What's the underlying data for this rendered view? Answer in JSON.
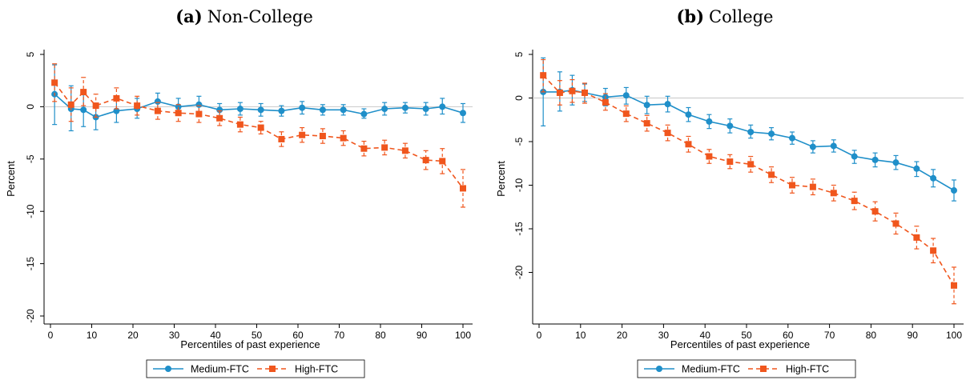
{
  "chart_data": [
    {
      "type": "line",
      "title_prefix": "(a)",
      "title": "Non-College",
      "xlabel": "Percentiles of past experience",
      "ylabel": "Percent",
      "xlim": [
        0,
        100
      ],
      "ylim": [
        -20,
        5
      ],
      "xticks": [
        0,
        10,
        20,
        30,
        40,
        50,
        60,
        70,
        80,
        90,
        100
      ],
      "yticks": [
        5,
        0,
        -5,
        -10,
        -15,
        -20
      ],
      "reference_line": 0,
      "grid": false,
      "legend_position": "bottom",
      "x": [
        1,
        5,
        8,
        11,
        16,
        21,
        26,
        31,
        36,
        41,
        46,
        51,
        56,
        61,
        66,
        71,
        76,
        81,
        86,
        91,
        95,
        100
      ],
      "series": [
        {
          "name": "Medium-FTC",
          "color": "#1f8fc9",
          "marker": "circle",
          "line": "solid",
          "values": [
            1.2,
            -0.2,
            -0.3,
            -1.0,
            -0.4,
            -0.2,
            0.5,
            0.0,
            0.2,
            -0.3,
            -0.2,
            -0.3,
            -0.4,
            -0.1,
            -0.3,
            -0.3,
            -0.7,
            -0.2,
            -0.1,
            -0.2,
            0.0,
            -0.6
          ],
          "ci_low": [
            -1.7,
            -2.3,
            -1.9,
            -2.2,
            -1.5,
            -1.1,
            -0.3,
            -0.8,
            -0.6,
            -0.9,
            -0.8,
            -0.9,
            -0.9,
            -0.7,
            -0.8,
            -0.8,
            -1.1,
            -0.8,
            -0.6,
            -0.8,
            -0.7,
            -1.5
          ],
          "ci_high": [
            4.0,
            2.0,
            1.3,
            0.3,
            0.7,
            0.8,
            1.3,
            0.8,
            1.0,
            0.3,
            0.4,
            0.3,
            0.1,
            0.5,
            0.2,
            0.2,
            -0.2,
            0.4,
            0.4,
            0.4,
            0.8,
            0.3
          ]
        },
        {
          "name": "High-FTC",
          "color": "#f0561d",
          "marker": "square",
          "line": "dashed",
          "values": [
            2.3,
            0.2,
            1.4,
            0.1,
            0.8,
            0.1,
            -0.4,
            -0.6,
            -0.7,
            -1.1,
            -1.7,
            -2.0,
            -3.1,
            -2.7,
            -2.8,
            -3.0,
            -4.0,
            -3.9,
            -4.2,
            -5.1,
            -5.2,
            -7.8
          ],
          "ci_low": [
            0.5,
            -1.4,
            0.1,
            -1.0,
            -0.2,
            -0.8,
            -1.2,
            -1.4,
            -1.5,
            -1.8,
            -2.4,
            -2.6,
            -3.8,
            -3.4,
            -3.5,
            -3.7,
            -4.7,
            -4.6,
            -4.9,
            -6.0,
            -6.4,
            -9.6
          ],
          "ci_high": [
            4.1,
            1.8,
            2.8,
            1.2,
            1.8,
            1.0,
            0.4,
            0.2,
            0.1,
            -0.4,
            -1.0,
            -1.4,
            -2.4,
            -2.0,
            -2.1,
            -2.3,
            -3.3,
            -3.2,
            -3.5,
            -4.2,
            -4.0,
            -6.0
          ]
        }
      ]
    },
    {
      "type": "line",
      "title_prefix": "(b)",
      "title": "College",
      "xlabel": "Percentiles of past experience",
      "ylabel": "Percent",
      "xlim": [
        0,
        100
      ],
      "ylim": [
        -25,
        5
      ],
      "xticks": [
        0,
        10,
        20,
        30,
        40,
        50,
        60,
        70,
        80,
        90,
        100
      ],
      "yticks": [
        5,
        0,
        -5,
        -10,
        -15,
        -20
      ],
      "reference_line": 0,
      "grid": false,
      "legend_position": "bottom",
      "x": [
        1,
        5,
        8,
        11,
        16,
        21,
        26,
        31,
        36,
        41,
        46,
        51,
        56,
        61,
        66,
        71,
        76,
        81,
        86,
        91,
        95,
        100
      ],
      "series": [
        {
          "name": "Medium-FTC",
          "color": "#1f8fc9",
          "marker": "circle",
          "line": "solid",
          "values": [
            0.7,
            0.7,
            0.9,
            0.6,
            0.1,
            0.3,
            -0.8,
            -0.7,
            -1.9,
            -2.7,
            -3.2,
            -3.9,
            -4.1,
            -4.6,
            -5.6,
            -5.5,
            -6.7,
            -7.1,
            -7.4,
            -8.1,
            -9.2,
            -10.6
          ],
          "ci_low": [
            -3.2,
            -1.5,
            -0.8,
            -0.4,
            -0.9,
            -0.7,
            -1.8,
            -1.6,
            -2.7,
            -3.5,
            -4.0,
            -4.6,
            -4.8,
            -5.3,
            -6.3,
            -6.2,
            -7.5,
            -7.9,
            -8.2,
            -9.0,
            -10.2,
            -11.8
          ],
          "ci_high": [
            4.6,
            3.0,
            2.6,
            1.6,
            1.1,
            1.2,
            0.2,
            0.2,
            -1.1,
            -1.9,
            -2.4,
            -3.1,
            -3.4,
            -3.9,
            -4.9,
            -4.8,
            -6.0,
            -6.3,
            -6.6,
            -7.3,
            -8.2,
            -9.4
          ]
        },
        {
          "name": "High-FTC",
          "color": "#f0561d",
          "marker": "square",
          "line": "dashed",
          "values": [
            2.6,
            0.6,
            0.8,
            0.6,
            -0.5,
            -1.8,
            -2.9,
            -4.0,
            -5.3,
            -6.7,
            -7.3,
            -7.6,
            -8.8,
            -10.0,
            -10.2,
            -10.9,
            -11.8,
            -13.0,
            -14.4,
            -16.0,
            -17.5,
            -21.5
          ],
          "ci_low": [
            0.7,
            -0.8,
            -0.5,
            -0.6,
            -1.4,
            -2.7,
            -3.8,
            -4.9,
            -6.2,
            -7.5,
            -8.1,
            -8.5,
            -9.7,
            -10.9,
            -11.1,
            -11.8,
            -12.8,
            -14.1,
            -15.6,
            -17.3,
            -18.9,
            -23.6
          ],
          "ci_high": [
            4.4,
            2.0,
            2.1,
            1.7,
            0.5,
            -0.9,
            -2.0,
            -3.1,
            -4.4,
            -5.9,
            -6.5,
            -6.7,
            -7.9,
            -9.1,
            -9.3,
            -10.0,
            -10.8,
            -11.9,
            -13.2,
            -14.7,
            -16.1,
            -19.4
          ]
        }
      ]
    }
  ]
}
